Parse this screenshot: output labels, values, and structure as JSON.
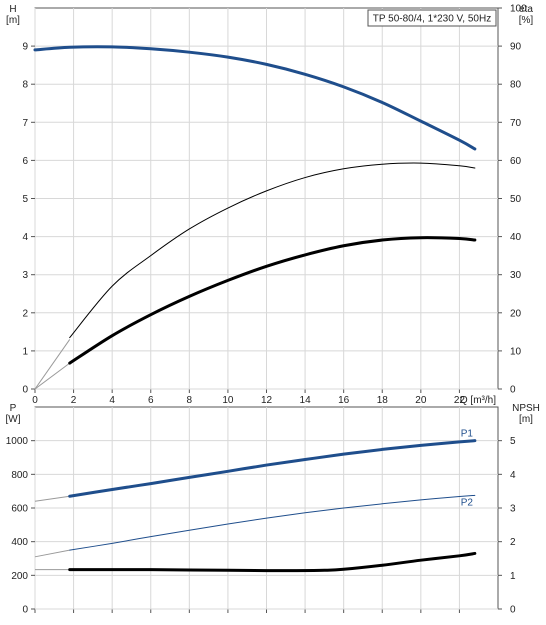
{
  "chart_data": [
    {
      "type": "line",
      "title": "TP 50-80/4, 1*230 V, 50Hz",
      "xlabel": "Q [m³/h]",
      "xlim": [
        0,
        24
      ],
      "x_ticks": [
        "0",
        "2",
        "4",
        "6",
        "8",
        "10",
        "12",
        "14",
        "16",
        "18",
        "20",
        "22"
      ],
      "left_axis": {
        "label_line1": "H",
        "label_line2": "[m]",
        "ylim": [
          0,
          10
        ],
        "ticks": [
          "0",
          "1",
          "2",
          "3",
          "4",
          "5",
          "6",
          "7",
          "8",
          "9"
        ]
      },
      "right_axis": {
        "label_line1": "eta",
        "label_line2": "[%]",
        "ylim": [
          0,
          100
        ],
        "ticks": [
          "0",
          "10",
          "20",
          "30",
          "40",
          "50",
          "60",
          "70",
          "80",
          "90",
          "100"
        ]
      },
      "grid": true,
      "series": [
        {
          "axis": "left",
          "color": "#1f4e8c",
          "width": 3,
          "x": [
            0,
            1.8,
            4,
            6,
            8,
            10,
            12,
            14,
            16,
            18,
            20,
            22,
            22.8
          ],
          "y": [
            8.9,
            8.97,
            8.98,
            8.93,
            8.84,
            8.71,
            8.52,
            8.26,
            7.93,
            7.52,
            7.03,
            6.53,
            6.3
          ]
        },
        {
          "axis": "right",
          "color": "#000000",
          "width": 1,
          "x": [
            1.8,
            4,
            6,
            8,
            10,
            12,
            14,
            16,
            18,
            20,
            22,
            22.8
          ],
          "y": [
            13.5,
            27,
            35,
            42,
            47.5,
            52,
            55.5,
            57.8,
            59,
            59.3,
            58.6,
            58
          ]
        },
        {
          "axis": "right",
          "color": "#000000",
          "width": 3,
          "x": [
            1.8,
            4,
            6,
            8,
            10,
            12,
            14,
            16,
            18,
            20,
            22,
            22.8
          ],
          "y": [
            6.8,
            14,
            19.5,
            24.3,
            28.5,
            32.2,
            35.2,
            37.6,
            39.1,
            39.7,
            39.5,
            39.1
          ]
        }
      ],
      "extrapolations": [
        {
          "axis": "left",
          "x": [
            0,
            1.8
          ],
          "y": [
            0,
            1.3
          ]
        },
        {
          "axis": "right",
          "x": [
            0,
            1.8
          ],
          "y": [
            0,
            6.8
          ]
        }
      ]
    },
    {
      "type": "line",
      "xlim": [
        0,
        24
      ],
      "left_axis": {
        "label_line1": "P",
        "label_line2": "[W]",
        "ylim": [
          0,
          1200
        ],
        "ticks": [
          "0",
          "200",
          "400",
          "600",
          "800",
          "1000"
        ]
      },
      "right_axis": {
        "label_line1": "NPSH",
        "label_line2": "[m]",
        "ylim": [
          0,
          6
        ],
        "ticks": [
          "0",
          "1",
          "2",
          "3",
          "4",
          "5"
        ]
      },
      "grid": true,
      "series": [
        {
          "name": "P1",
          "axis": "left",
          "color": "#1f4e8c",
          "width": 3,
          "x": [
            1.8,
            4,
            6,
            8,
            10,
            12,
            14,
            16,
            18,
            20,
            22,
            22.8
          ],
          "y": [
            670,
            710,
            745,
            782,
            818,
            855,
            888,
            920,
            948,
            972,
            993,
            1000
          ]
        },
        {
          "name": "P2",
          "axis": "left",
          "color": "#1f4e8c",
          "width": 1,
          "x": [
            1.8,
            4,
            6,
            8,
            10,
            12,
            14,
            16,
            18,
            20,
            22,
            22.8
          ],
          "y": [
            350,
            390,
            430,
            468,
            505,
            540,
            572,
            600,
            625,
            648,
            668,
            675
          ]
        },
        {
          "axis": "right",
          "color": "#000000",
          "width": 3,
          "x": [
            1.8,
            4,
            6,
            8,
            10,
            12,
            13.5,
            15,
            16,
            18,
            20,
            22,
            22.8
          ],
          "y": [
            1.17,
            1.17,
            1.17,
            1.16,
            1.15,
            1.14,
            1.14,
            1.15,
            1.18,
            1.3,
            1.45,
            1.58,
            1.65
          ]
        }
      ],
      "extrapolations": [
        {
          "axis": "left",
          "x": [
            0,
            1.8
          ],
          "y": [
            640,
            670
          ]
        },
        {
          "axis": "left",
          "x": [
            0,
            1.8
          ],
          "y": [
            310,
            350
          ]
        },
        {
          "axis": "right",
          "x": [
            0,
            1.8
          ],
          "y": [
            1.17,
            1.17
          ]
        }
      ]
    }
  ]
}
